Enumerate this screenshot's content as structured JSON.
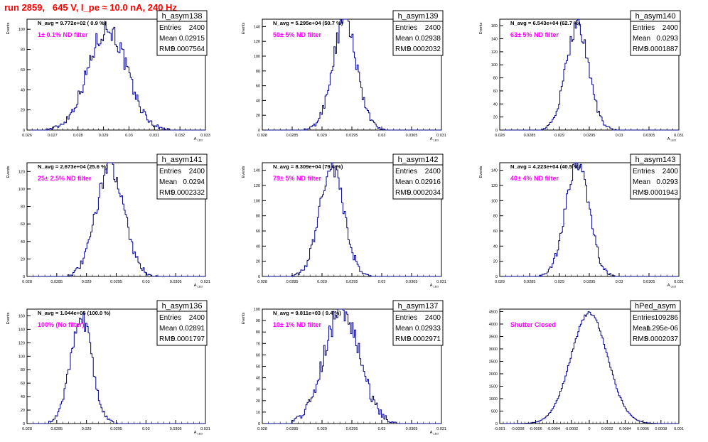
{
  "page_title": "run 2859,   645 V, I_pe ≈ 10.0 nA, 240 Hz",
  "stat_labels": {
    "entries": "Entries",
    "mean": "Mean",
    "rms": "RMS"
  },
  "chart_data": [
    {
      "type": "histogram",
      "name": "h_asym138",
      "navg": "N_avg = 9.772e+02 ( 0.9 %)",
      "filter": "1± 0.1% ND filter",
      "entries": "2400",
      "mean": "0.02915",
      "rms": "0.0007564",
      "xlim": [
        0.026,
        0.033
      ],
      "ylim": [
        0,
        110
      ],
      "xticks": [
        0.026,
        0.027,
        0.028,
        0.029,
        0.03,
        0.031,
        0.032,
        0.033
      ],
      "xticklabels": [
        "0.026",
        "0.027",
        "0.028",
        "0.029",
        "0.03",
        "0.031",
        "0.032",
        "0.033"
      ],
      "yticks": [
        0,
        20,
        40,
        60,
        80,
        100
      ],
      "yticklabels": [
        "0",
        "20",
        "40",
        "60",
        "80",
        "100"
      ],
      "xlabel": "A_LED",
      "ylabel": "Events",
      "mu": 0.02915,
      "sigma": 0.0007564,
      "peak": 101
    },
    {
      "type": "histogram",
      "name": "h_asym139",
      "navg": "N_avg = 5.295e+04 (50.7 %)",
      "filter": "50± 5% ND filter",
      "entries": "2400",
      "mean": "0.02938",
      "rms": "0.0002032",
      "xlim": [
        0.028,
        0.031
      ],
      "ylim": [
        0,
        150
      ],
      "xticks": [
        0.028,
        0.0285,
        0.029,
        0.0295,
        0.03,
        0.0305,
        0.031
      ],
      "xticklabels": [
        "0.028",
        "0.0285",
        "0.029",
        "0.0295",
        "0.03",
        "0.0305",
        "0.031"
      ],
      "yticks": [
        0,
        20,
        40,
        60,
        80,
        100,
        120,
        140
      ],
      "yticklabels": [
        "0",
        "20",
        "40",
        "60",
        "80",
        "100",
        "120",
        "140"
      ],
      "xlabel": "A_LED",
      "ylabel": "Events",
      "mu": 0.02938,
      "sigma": 0.0002032,
      "peak": 146
    },
    {
      "type": "histogram",
      "name": "h_asym140",
      "navg": "N_avg = 6.543e+04 (62.7 %)",
      "filter": "63± 5% ND filter",
      "entries": "2400",
      "mean": "0.0293",
      "rms": "0.0001887",
      "xlim": [
        0.028,
        0.031
      ],
      "ylim": [
        0,
        170
      ],
      "xticks": [
        0.028,
        0.0285,
        0.029,
        0.0295,
        0.03,
        0.0305,
        0.031
      ],
      "xticklabels": [
        "0.028",
        "0.0285",
        "0.029",
        "0.0295",
        "0.03",
        "0.0305",
        "0.031"
      ],
      "yticks": [
        0,
        20,
        40,
        60,
        80,
        100,
        120,
        140,
        160
      ],
      "yticklabels": [
        "0",
        "20",
        "40",
        "60",
        "80",
        "100",
        "120",
        "140",
        "160"
      ],
      "xlabel": "A_LED",
      "ylabel": "Events",
      "mu": 0.0293,
      "sigma": 0.0001887,
      "peak": 162
    },
    {
      "type": "histogram",
      "name": "h_asym141",
      "navg": "N_avg = 2.673e+04 (25.6 %)",
      "filter": "25± 2.5% ND filter",
      "entries": "2400",
      "mean": "0.0294",
      "rms": "0.0002332",
      "xlim": [
        0.028,
        0.031
      ],
      "ylim": [
        0,
        130
      ],
      "xticks": [
        0.028,
        0.0285,
        0.029,
        0.0295,
        0.03,
        0.0305,
        0.031
      ],
      "xticklabels": [
        "0.028",
        "0.0285",
        "0.029",
        "0.0295",
        "0.03",
        "0.0305",
        "0.031"
      ],
      "yticks": [
        0,
        20,
        40,
        60,
        80,
        100,
        120
      ],
      "yticklabels": [
        "0",
        "20",
        "40",
        "60",
        "80",
        "100",
        "120"
      ],
      "xlabel": "A_LED",
      "ylabel": "Events",
      "mu": 0.0294,
      "sigma": 0.0002332,
      "peak": 128
    },
    {
      "type": "histogram",
      "name": "h_asym142",
      "navg": "N_avg = 8.309e+04 (79.6 %)",
      "filter": "79± 5% ND filter",
      "entries": "2400",
      "mean": "0.02916",
      "rms": "0.0002034",
      "xlim": [
        0.028,
        0.031
      ],
      "ylim": [
        0,
        150
      ],
      "xticks": [
        0.028,
        0.0285,
        0.029,
        0.0295,
        0.03,
        0.0305,
        0.031
      ],
      "xticklabels": [
        "0.028",
        "0.0285",
        "0.029",
        "0.0295",
        "0.03",
        "0.0305",
        "0.031"
      ],
      "yticks": [
        0,
        20,
        40,
        60,
        80,
        100,
        120,
        140
      ],
      "yticklabels": [
        "0",
        "20",
        "40",
        "60",
        "80",
        "100",
        "120",
        "140"
      ],
      "xlabel": "A_LED",
      "ylabel": "Events",
      "mu": 0.02916,
      "sigma": 0.0002034,
      "peak": 146
    },
    {
      "type": "histogram",
      "name": "h_asym143",
      "navg": "N_avg = 4.223e+04 (40.5 %)",
      "filter": "40± 4% ND filter",
      "entries": "2400",
      "mean": "0.0293",
      "rms": "0.0001943",
      "xlim": [
        0.028,
        0.031
      ],
      "ylim": [
        0,
        150
      ],
      "xticks": [
        0.028,
        0.0285,
        0.029,
        0.0295,
        0.03,
        0.0305,
        0.031
      ],
      "xticklabels": [
        "0.028",
        "0.0285",
        "0.029",
        "0.0295",
        "0.03",
        "0.0305",
        "0.031"
      ],
      "yticks": [
        0,
        20,
        40,
        60,
        80,
        100,
        120,
        140
      ],
      "yticklabels": [
        "0",
        "20",
        "40",
        "60",
        "80",
        "100",
        "120",
        "140"
      ],
      "xlabel": "A_LED",
      "ylabel": "Events",
      "mu": 0.0293,
      "sigma": 0.0001943,
      "peak": 150
    },
    {
      "type": "histogram",
      "name": "h_asym136",
      "navg": "N_avg = 1.044e+05 (100.0 %)",
      "filter": "100% (No filter)",
      "entries": "2400",
      "mean": "0.02891",
      "rms": "0.0001797",
      "xlim": [
        0.028,
        0.031
      ],
      "ylim": [
        0,
        170
      ],
      "xticks": [
        0.028,
        0.0285,
        0.029,
        0.0295,
        0.03,
        0.0305,
        0.031
      ],
      "xticklabels": [
        "0.028",
        "0.0285",
        "0.029",
        "0.0295",
        "0.03",
        "0.0305",
        "0.031"
      ],
      "yticks": [
        0,
        20,
        40,
        60,
        80,
        100,
        120,
        140,
        160
      ],
      "yticklabels": [
        "0",
        "20",
        "40",
        "60",
        "80",
        "100",
        "120",
        "140",
        "160"
      ],
      "xlabel": "A_LED",
      "ylabel": "Events",
      "mu": 0.02891,
      "sigma": 0.0001797,
      "peak": 160
    },
    {
      "type": "histogram",
      "name": "h_asym137",
      "navg": "N_avg = 9.811e+03 ( 9.4 %)",
      "filter": "10± 1% ND filter",
      "entries": "2400",
      "mean": "0.02933",
      "rms": "0.0002971",
      "xlim": [
        0.028,
        0.031
      ],
      "ylim": [
        0,
        100
      ],
      "xticks": [
        0.028,
        0.0285,
        0.029,
        0.0295,
        0.03,
        0.0305,
        0.031
      ],
      "xticklabels": [
        "0.028",
        "0.0285",
        "0.029",
        "0.0295",
        "0.03",
        "0.0305",
        "0.031"
      ],
      "yticks": [
        0,
        10,
        20,
        30,
        40,
        50,
        60,
        70,
        80,
        90,
        100
      ],
      "yticklabels": [
        "0",
        "10",
        "20",
        "30",
        "40",
        "50",
        "60",
        "70",
        "80",
        "90",
        "100"
      ],
      "xlabel": "A_LED",
      "ylabel": "Events",
      "mu": 0.02933,
      "sigma": 0.0002971,
      "peak": 100
    },
    {
      "type": "histogram",
      "name": "hPed_asym",
      "navg": "",
      "filter": "Shutter Closed",
      "entries": "109286",
      "mean": "-1.295e-06",
      "rms": "0.0002037",
      "xlim": [
        -0.001,
        0.001
      ],
      "ylim": [
        0,
        4600
      ],
      "xticks": [
        -0.001,
        -0.0008,
        -0.0006,
        -0.0004,
        -0.0002,
        0,
        0.0002,
        0.0004,
        0.0006,
        0.0008,
        0.001
      ],
      "xticklabels": [
        "-0.001",
        "-0.0008",
        "-0.0006",
        "-0.0004",
        "-0.0002",
        "0",
        "0.0002",
        "0.0004",
        "0.0006",
        "0.0008",
        "0.001"
      ],
      "yticks": [
        0,
        500,
        1000,
        1500,
        2000,
        2500,
        3000,
        3500,
        4000,
        4500
      ],
      "yticklabels": [
        "0",
        "500",
        "1000",
        "1500",
        "2000",
        "2500",
        "3000",
        "3500",
        "4000",
        "4500"
      ],
      "xlabel": "",
      "ylabel": "",
      "mu": 0,
      "sigma": 0.0002037,
      "peak": 4450
    }
  ]
}
